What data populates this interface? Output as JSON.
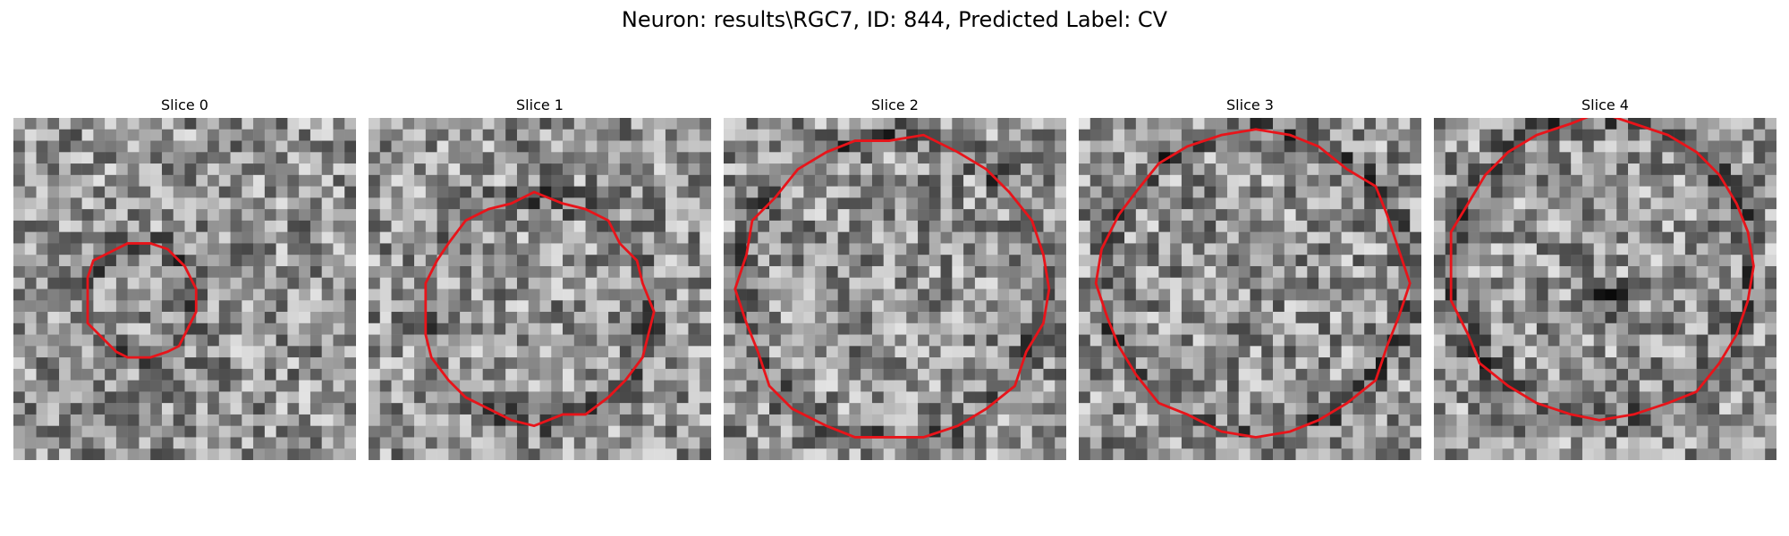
{
  "figure": {
    "title": "Neuron: results\\RGC7, ID: 844, Predicted Label: CV",
    "contour_color": "#e8141a",
    "panels": [
      {
        "title": "Slice 0",
        "outline_radius": 0.165,
        "outline_cx": 0.37,
        "outline_cy": 0.53,
        "dark_spot": false
      },
      {
        "title": "Slice 1",
        "outline_radius": 0.33,
        "outline_cx": 0.49,
        "outline_cy": 0.56,
        "dark_spot": false
      },
      {
        "title": "Slice 2",
        "outline_radius": 0.445,
        "outline_cx": 0.49,
        "outline_cy": 0.5,
        "dark_spot": false
      },
      {
        "title": "Slice 3",
        "outline_radius": 0.445,
        "outline_cx": 0.51,
        "outline_cy": 0.48,
        "dark_spot": false
      },
      {
        "title": "Slice 4",
        "outline_radius": 0.44,
        "outline_cx": 0.49,
        "outline_cy": 0.44,
        "dark_spot": true
      }
    ]
  }
}
